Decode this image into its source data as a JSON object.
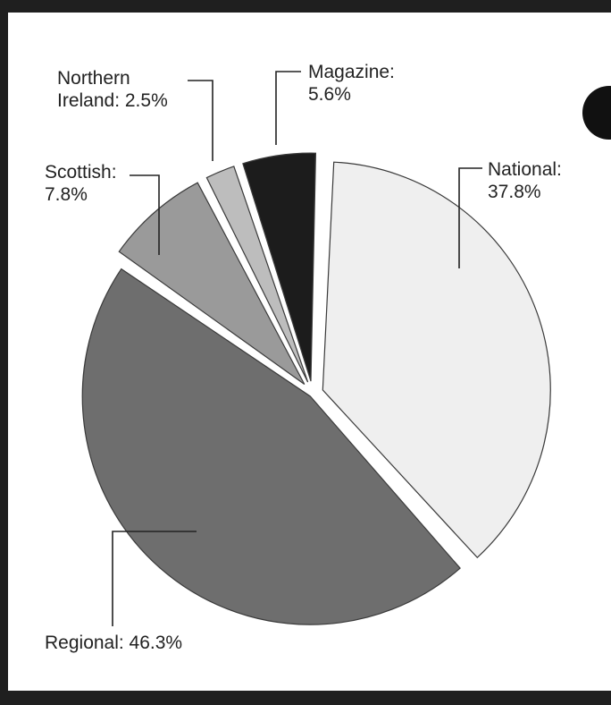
{
  "chart_data": {
    "type": "pie",
    "style": "exploded",
    "categories": [
      "National",
      "Regional",
      "Scottish",
      "Northern Ireland",
      "Magazine"
    ],
    "values": [
      37.8,
      46.3,
      7.8,
      2.5,
      5.6
    ],
    "colors": [
      "#efefef",
      "#6e6e6e",
      "#9a9a9a",
      "#bdbdbd",
      "#1c1c1c"
    ],
    "labels": [
      {
        "lines": [
          "National:",
          "37.8%"
        ]
      },
      {
        "lines": [
          "Regional: 46.3%"
        ]
      },
      {
        "lines": [
          "Scottish:",
          "7.8%"
        ]
      },
      {
        "lines": [
          "Northern",
          "Ireland: 2.5%"
        ]
      },
      {
        "lines": [
          "Magazine:",
          "5.6%"
        ]
      }
    ]
  }
}
